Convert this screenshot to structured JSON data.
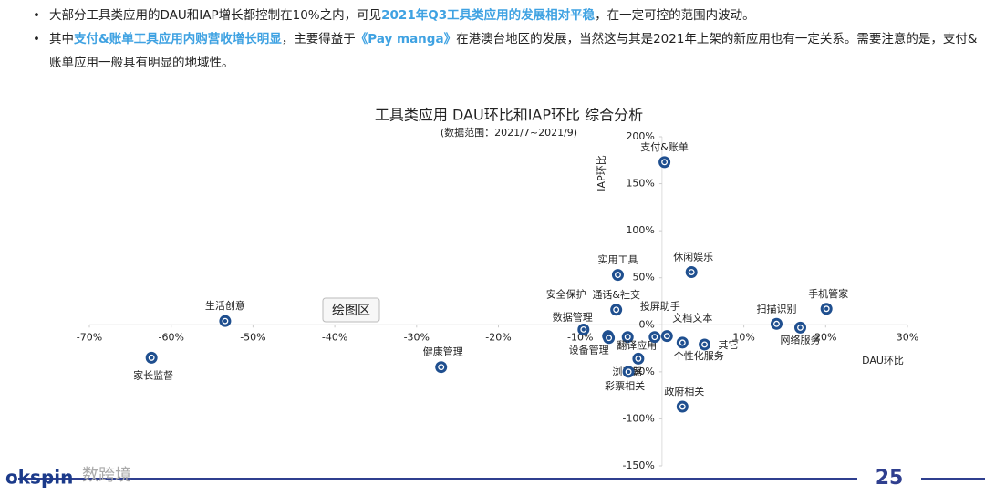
{
  "bullets": [
    {
      "segments": [
        {
          "text": "大部分工具类应用的DAU和IAP增长都控制在10%之内，可见",
          "hl": false
        },
        {
          "text": "2021年Q3工具类应用的发展相对平稳",
          "hl": true
        },
        {
          "text": "，在一定可控的范围内波动。",
          "hl": false
        }
      ]
    },
    {
      "segments": [
        {
          "text": "其中",
          "hl": false
        },
        {
          "text": "支付&账单工具应用内购营收增长明显",
          "hl": true
        },
        {
          "text": "，主要得益于",
          "hl": false
        },
        {
          "text": "《Pay manga》",
          "hl": true
        },
        {
          "text": "在港澳台地区的发展，当然这与其是2021年上架的新应用也有一定关系。需要注意的是，支付&账单应用一般具有明显的地域性。",
          "hl": false
        }
      ]
    }
  ],
  "chart_data": {
    "type": "scatter",
    "title": "工具类应用 DAU环比和IAP环比 综合分析",
    "subtitle": "(数据范围：2021/7~2021/9)",
    "x_label": "DAU环比",
    "y_label": "IAP环比",
    "color": "#1f4f8f",
    "tooltip": "绘图区",
    "xlim": [
      -70,
      30
    ],
    "ylim": [
      -150,
      200
    ],
    "xticks": [
      {
        "value": -70,
        "label": "-70%"
      },
      {
        "value": -60,
        "label": "-60%"
      },
      {
        "value": -50,
        "label": "-50%"
      },
      {
        "value": -40,
        "label": "-40%"
      },
      {
        "value": -30,
        "label": "-30%"
      },
      {
        "value": -20,
        "label": "-20%"
      },
      {
        "value": -10,
        "label": "-10%"
      },
      {
        "value": 10,
        "label": "10%"
      },
      {
        "value": 20,
        "label": "20%"
      },
      {
        "value": 30,
        "label": "30%"
      }
    ],
    "yticks": [
      {
        "value": -150,
        "label": "-150%"
      },
      {
        "value": -100,
        "label": "-100%"
      },
      {
        "value": -50,
        "label": "-50%"
      },
      {
        "value": 0,
        "label": "0%"
      },
      {
        "value": 50,
        "label": "50%"
      },
      {
        "value": 100,
        "label": "100%"
      },
      {
        "value": 150,
        "label": "150%"
      },
      {
        "value": 200,
        "label": "200%"
      }
    ],
    "points": [
      {
        "name": "支付&账单",
        "x": 0.3,
        "y": 173
      },
      {
        "name": "休闲娱乐",
        "x": 3.6,
        "y": 56
      },
      {
        "name": "实用工具",
        "x": -5.4,
        "y": 53
      },
      {
        "name": "通话&社交",
        "x": -5.6,
        "y": 16
      },
      {
        "name": "生活创意",
        "x": -53.4,
        "y": 4
      },
      {
        "name": "数据管理",
        "x": -9.6,
        "y": -5
      },
      {
        "name": "安全保护",
        "x": -6.6,
        "y": -12
      },
      {
        "name": "设备管理",
        "x": -6.5,
        "y": -14
      },
      {
        "name": "翻译应用",
        "x": -4.2,
        "y": -13
      },
      {
        "name": "投屏助手",
        "x": -0.9,
        "y": -13
      },
      {
        "name": "文档文本",
        "x": 0.6,
        "y": -12
      },
      {
        "name": "个性化服务",
        "x": 2.5,
        "y": -19
      },
      {
        "name": "其它",
        "x": 5.2,
        "y": -21
      },
      {
        "name": "扫描识别",
        "x": 14.0,
        "y": 1
      },
      {
        "name": "网络服务",
        "x": 16.9,
        "y": -3
      },
      {
        "name": "手机管家",
        "x": 20.1,
        "y": 17
      },
      {
        "name": "家长监督",
        "x": -62.4,
        "y": -35
      },
      {
        "name": "健康管理",
        "x": -27.0,
        "y": -45
      },
      {
        "name": "浏览器",
        "x": -2.9,
        "y": -36
      },
      {
        "name": "彩票相关",
        "x": -4.1,
        "y": -50
      },
      {
        "name": "政府相关",
        "x": 2.5,
        "y": -87
      }
    ]
  },
  "footer": {
    "logo": "okspin",
    "watermark": "数跨境",
    "page": "25"
  }
}
